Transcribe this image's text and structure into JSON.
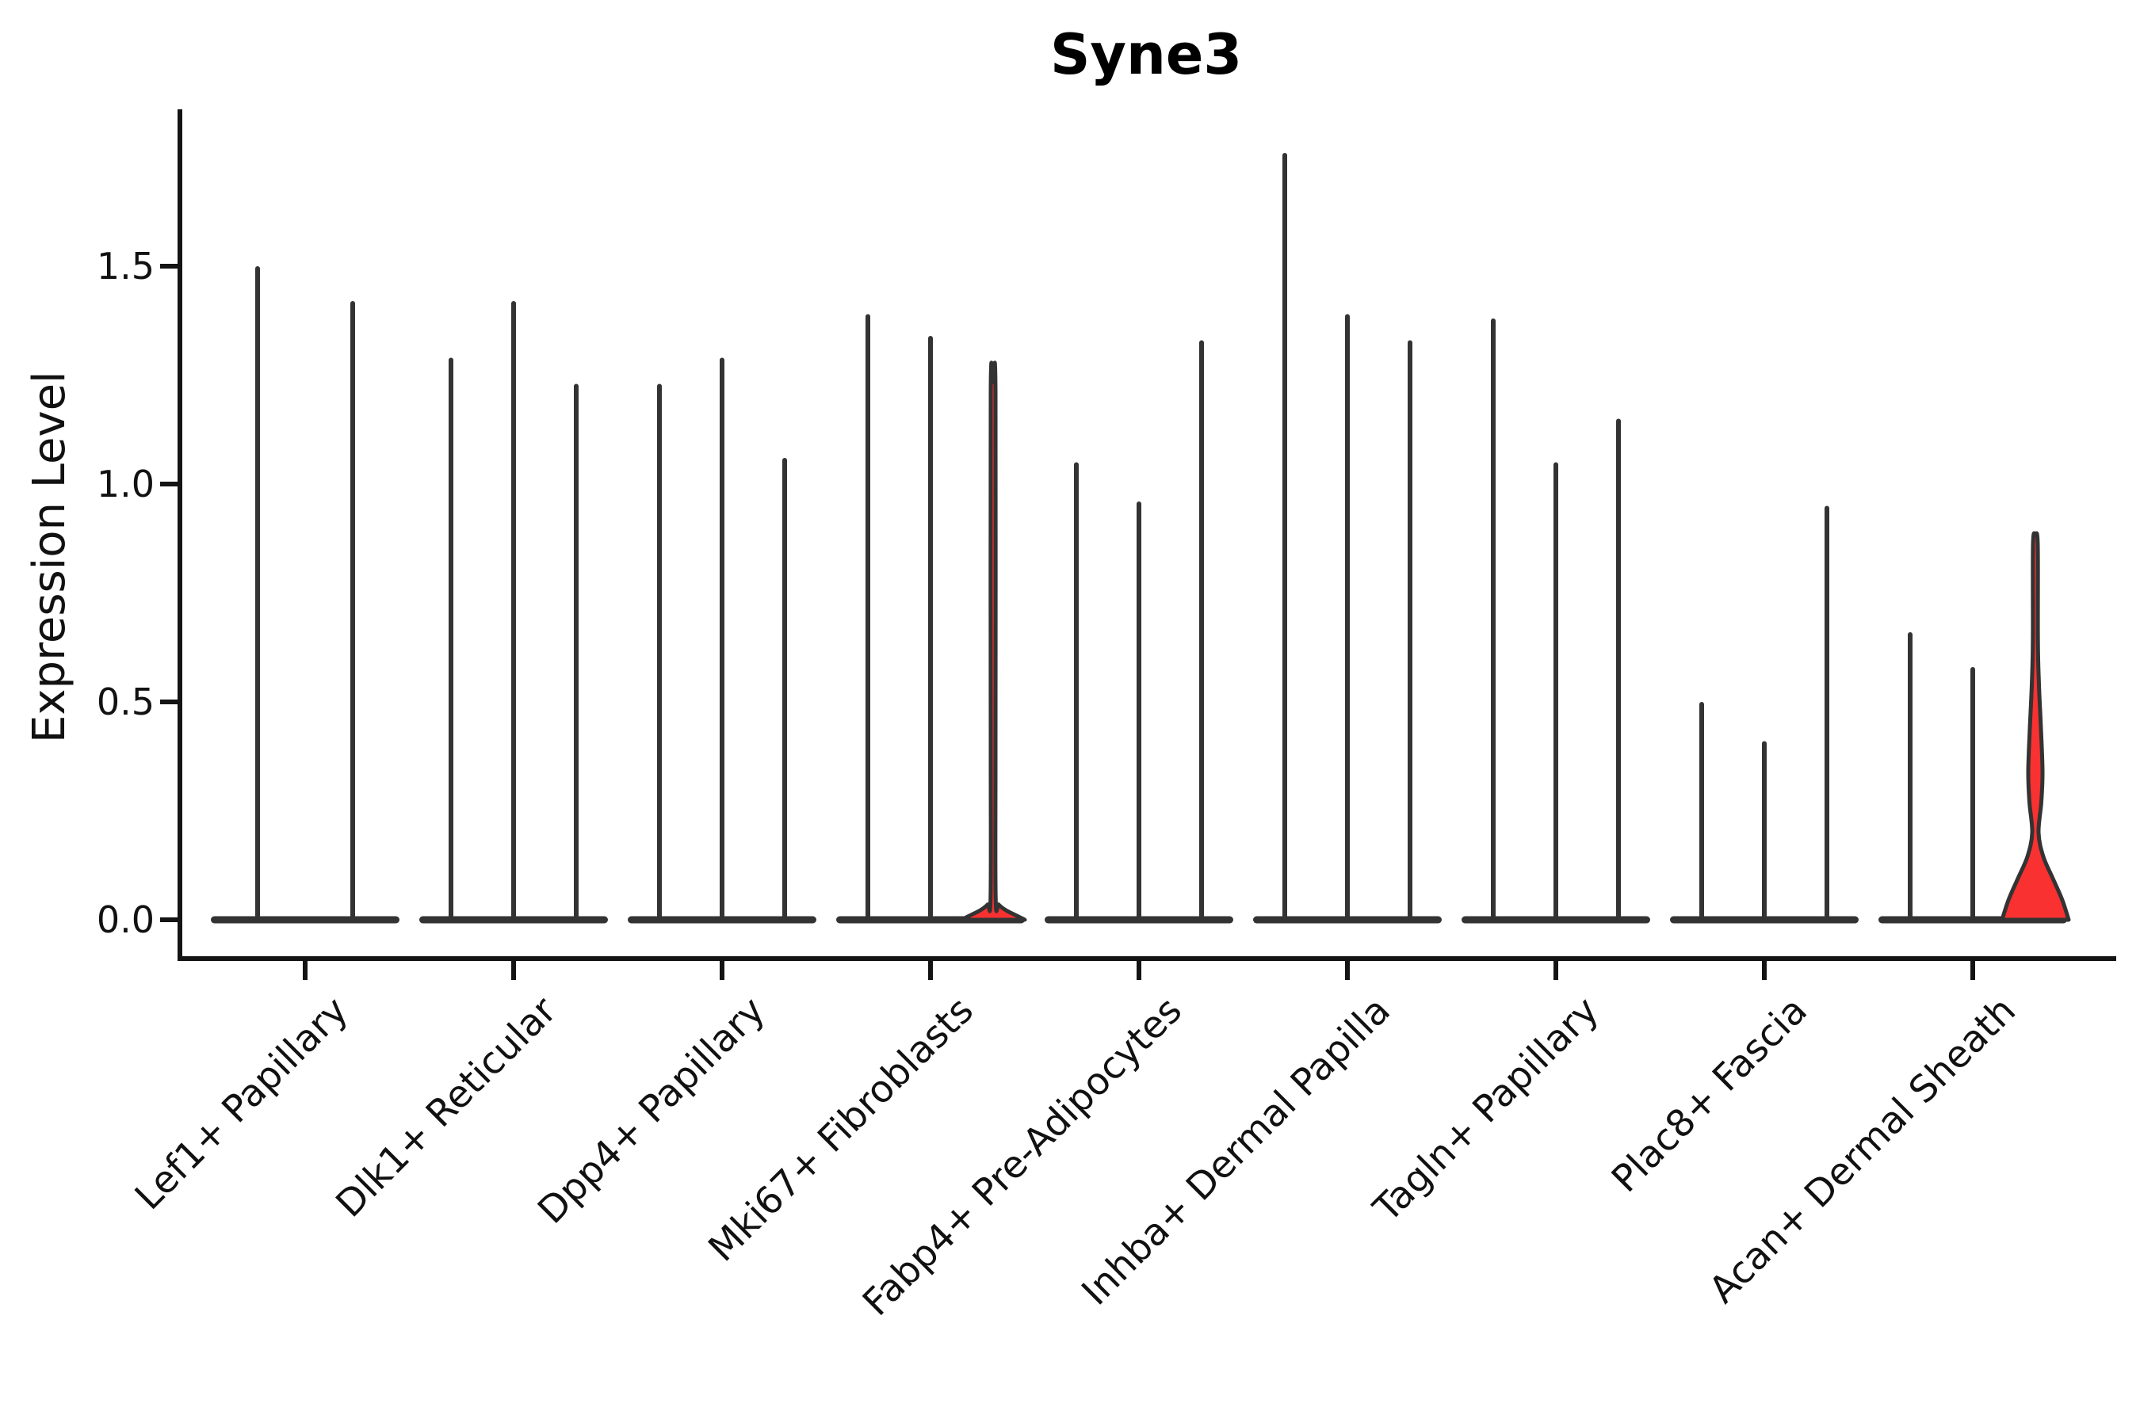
{
  "title": "Syne3",
  "y_axis": {
    "label": "Expression Level",
    "tick_labels": [
      "0.0",
      "0.5",
      "1.0",
      "1.5"
    ],
    "tick_values": [
      0.0,
      0.5,
      1.0,
      1.5
    ]
  },
  "x_axis": {
    "categories": [
      "Lef1+ Papillary",
      "Dlk1+ Reticular",
      "Dpp4+ Papillary",
      "Mki67+ Fibroblasts",
      "Fabp4+ Pre-Adipocytes",
      "Inhba+ Dermal Papilla",
      "Tagln+ Papillary",
      "Plac8+ Fascia",
      "Acan+ Dermal Sheath"
    ]
  },
  "chart_data": {
    "type": "violin",
    "title": "Syne3",
    "xlabel": "",
    "ylabel": "Expression Level",
    "ylim": [
      -0.09,
      1.86
    ],
    "yticks": [
      0.0,
      0.5,
      1.0,
      1.5
    ],
    "grid": false,
    "legend": "none",
    "categories": [
      "Lef1+ Papillary",
      "Dlk1+ Reticular",
      "Dpp4+ Papillary",
      "Mki67+ Fibroblasts",
      "Fabp4+ Pre-Adipocytes",
      "Inhba+ Dermal Papilla",
      "Tagln+ Papillary",
      "Plac8+ Fascia",
      "Acan+ Dermal Sheath"
    ],
    "description": "Violin plot of Syne3 expression; most violins collapse to a baseline bar at 0 with a thin spike up to the max expressing cell; two violins (3rd of Mki67+ Fibroblasts, 3rd of Acan+ Dermal Sheath) show a visible red density bulge near 0.",
    "groups": [
      {
        "category": "Lef1+ Papillary",
        "violins": [
          {
            "max": 1.5
          },
          {
            "max": 1.42
          }
        ]
      },
      {
        "category": "Dlk1+ Reticular",
        "violins": [
          {
            "max": 1.29
          },
          {
            "max": 1.42
          },
          {
            "max": 1.23
          }
        ]
      },
      {
        "category": "Dpp4+ Papillary",
        "violins": [
          {
            "max": 1.23
          },
          {
            "max": 1.29
          },
          {
            "max": 1.06
          }
        ]
      },
      {
        "category": "Mki67+ Fibroblasts",
        "violins": [
          {
            "max": 1.39
          },
          {
            "max": 1.34
          },
          {
            "max": 1.23,
            "highlight": true,
            "profile": [
              [
                0,
                40
              ],
              [
                0.01,
                29
              ],
              [
                0.022,
                16
              ],
              [
                0.035,
                7
              ],
              [
                0.05,
                3.2
              ],
              [
                0.4,
                3.0
              ],
              [
                1.21,
                3.0
              ]
            ]
          }
        ]
      },
      {
        "category": "Fabp4+ Pre-Adipocytes",
        "violins": [
          {
            "max": 1.05
          },
          {
            "max": 0.96
          },
          {
            "max": 1.33
          }
        ]
      },
      {
        "category": "Inhba+ Dermal Papilla",
        "violins": [
          {
            "max": 1.76
          },
          {
            "max": 1.39
          },
          {
            "max": 1.33
          }
        ]
      },
      {
        "category": "Tagln+ Papillary",
        "violins": [
          {
            "max": 1.38
          },
          {
            "max": 1.05
          },
          {
            "max": 1.15
          }
        ]
      },
      {
        "category": "Plac8+ Fascia",
        "violins": [
          {
            "max": 0.5
          },
          {
            "max": 0.41
          },
          {
            "max": 0.95
          }
        ]
      },
      {
        "category": "Acan+ Dermal Sheath",
        "violins": [
          {
            "max": 0.66
          },
          {
            "max": 0.58
          },
          {
            "max": 0.88,
            "highlight": true,
            "profile": [
              [
                0,
                42
              ],
              [
                0.045,
                34
              ],
              [
                0.095,
                22
              ],
              [
                0.145,
                10
              ],
              [
                0.2,
                4
              ],
              [
                0.27,
                7.5
              ],
              [
                0.34,
                9
              ],
              [
                0.44,
                7
              ],
              [
                0.54,
                4.5
              ],
              [
                0.64,
                3.2
              ],
              [
                0.86,
                3.0
              ]
            ]
          }
        ]
      }
    ],
    "colors": {
      "violin_line": "#333333",
      "highlight_fill": "#f93131",
      "axis": "#141414",
      "text": "#111111",
      "background": "#ffffff"
    }
  }
}
